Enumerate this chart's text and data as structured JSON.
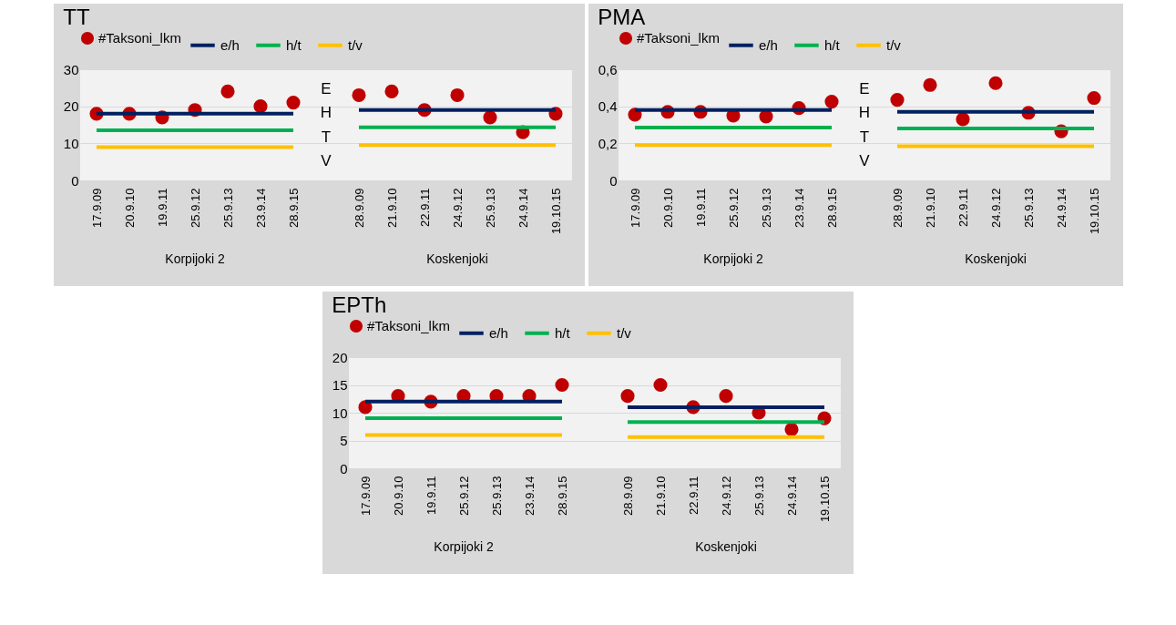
{
  "chart_data": [
    {
      "type": "scatter",
      "title": "TT",
      "categories": [
        "17.9.09",
        "20.9.10",
        "19.9.11",
        "25.9.12",
        "25.9.13",
        "23.9.14",
        "28.9.15",
        null,
        "28.9.09",
        "21.9.10",
        "22.9.11",
        "24.9.12",
        "25.9.13",
        "24.9.14",
        "19.10.15"
      ],
      "series": [
        {
          "name": "#Taksoni_lkm",
          "color": "#c00000",
          "values": [
            18,
            18,
            17,
            19,
            24,
            20,
            21,
            null,
            23,
            24,
            19,
            23,
            17,
            13,
            18
          ]
        },
        {
          "name": "e/h",
          "type": "line",
          "color": "#002060",
          "values": [
            18,
            18,
            18,
            18,
            18,
            18,
            18,
            null,
            19,
            19,
            19,
            19,
            19,
            19,
            19
          ]
        },
        {
          "name": "h/t",
          "type": "line",
          "color": "#00b050",
          "values": [
            13.5,
            13.5,
            13.5,
            13.5,
            13.5,
            13.5,
            13.5,
            null,
            14.3,
            14.3,
            14.3,
            14.3,
            14.3,
            14.3,
            14.3
          ]
        },
        {
          "name": "t/v",
          "type": "line",
          "color": "#ffc000",
          "values": [
            9,
            9,
            9,
            9,
            9,
            9,
            9,
            null,
            9.5,
            9.5,
            9.5,
            9.5,
            9.5,
            9.5,
            9.5
          ]
        }
      ],
      "ylim": [
        0,
        30
      ],
      "yticks": [
        0,
        10,
        20,
        30
      ],
      "grid": "y",
      "legend": "top",
      "annotations": [
        "Korpijoki 2",
        "Koskenjoki",
        "E",
        "H",
        "T",
        "V"
      ]
    },
    {
      "type": "scatter",
      "title": "PMA",
      "categories": [
        "17.9.09",
        "20.9.10",
        "19.9.11",
        "25.9.12",
        "25.9.13",
        "23.9.14",
        "28.9.15",
        null,
        "28.9.09",
        "21.9.10",
        "22.9.11",
        "24.9.12",
        "25.9.13",
        "24.9.14",
        "19.10.15"
      ],
      "series": [
        {
          "name": "#Taksoni_lkm",
          "color": "#c00000",
          "values": [
            0.355,
            0.37,
            0.37,
            0.35,
            0.345,
            0.39,
            0.425,
            null,
            0.435,
            0.515,
            0.33,
            0.525,
            0.365,
            0.265,
            0.445
          ]
        },
        {
          "name": "e/h",
          "type": "line",
          "color": "#002060",
          "values": [
            0.38,
            0.38,
            0.38,
            0.38,
            0.38,
            0.38,
            0.38,
            null,
            0.37,
            0.37,
            0.37,
            0.37,
            0.37,
            0.37,
            0.37
          ]
        },
        {
          "name": "h/t",
          "type": "line",
          "color": "#00b050",
          "values": [
            0.285,
            0.285,
            0.285,
            0.285,
            0.285,
            0.285,
            0.285,
            null,
            0.28,
            0.28,
            0.28,
            0.28,
            0.28,
            0.28,
            0.28
          ]
        },
        {
          "name": "t/v",
          "type": "line",
          "color": "#ffc000",
          "values": [
            0.19,
            0.19,
            0.19,
            0.19,
            0.19,
            0.19,
            0.19,
            null,
            0.185,
            0.185,
            0.185,
            0.185,
            0.185,
            0.185,
            0.185
          ]
        }
      ],
      "ylim": [
        0,
        0.6
      ],
      "yticks": [
        0,
        {
          "value": 0.2,
          "label": "0,2"
        },
        {
          "value": 0.4,
          "label": "0,4"
        },
        {
          "value": 0.6,
          "label": "0,6"
        }
      ],
      "grid": "y",
      "legend": "top",
      "annotations": [
        "Korpijoki 2",
        "Koskenjoki",
        "E",
        "H",
        "T",
        "V"
      ]
    },
    {
      "type": "scatter",
      "title": "EPTh",
      "categories": [
        "17.9.09",
        "20.9.10",
        "19.9.11",
        "25.9.12",
        "25.9.13",
        "23.9.14",
        "28.9.15",
        null,
        "28.9.09",
        "21.9.10",
        "22.9.11",
        "24.9.12",
        "25.9.13",
        "24.9.14",
        "19.10.15"
      ],
      "series": [
        {
          "name": "#Taksoni_lkm",
          "color": "#c00000",
          "values": [
            11,
            13,
            12,
            13,
            13,
            13,
            15,
            null,
            13,
            15,
            11,
            13,
            10,
            7,
            9
          ]
        },
        {
          "name": "e/h",
          "type": "line",
          "color": "#002060",
          "values": [
            12,
            12,
            12,
            12,
            12,
            12,
            12,
            null,
            11,
            11,
            11,
            11,
            11,
            11,
            11
          ]
        },
        {
          "name": "h/t",
          "type": "line",
          "color": "#00b050",
          "values": [
            9,
            9,
            9,
            9,
            9,
            9,
            9,
            null,
            8.3,
            8.3,
            8.3,
            8.3,
            8.3,
            8.3,
            8.3
          ]
        },
        {
          "name": "t/v",
          "type": "line",
          "color": "#ffc000",
          "values": [
            6,
            6,
            6,
            6,
            6,
            6,
            6,
            null,
            5.6,
            5.6,
            5.6,
            5.6,
            5.6,
            5.6,
            5.6
          ]
        }
      ],
      "ylim": [
        0,
        20
      ],
      "yticks": [
        0,
        5,
        10,
        15,
        20
      ],
      "grid": "y",
      "legend": "top",
      "annotations": [
        "Korpijoki 2",
        "Koskenjoki"
      ]
    }
  ]
}
